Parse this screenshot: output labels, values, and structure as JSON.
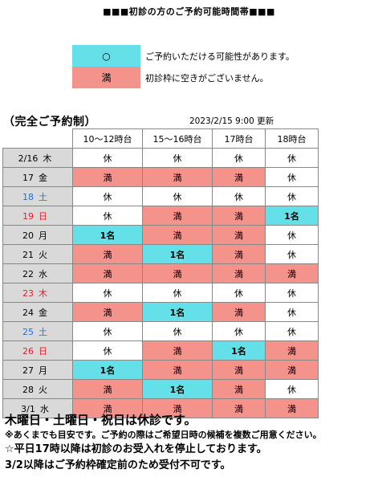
{
  "title": "■■■初診の方のご予約可能時間帯■■■",
  "legend": [
    {
      "symbol": "○",
      "text": "ご予約いただける可能性があります。",
      "color": "#66e0e8"
    },
    {
      "symbol": "満",
      "text": "初診枠に空きがございません。",
      "color": "#f4938c"
    }
  ],
  "system_label": "（完全ご予約制）",
  "updated": "2023/2/15 9:00 更新",
  "columns": [
    "10〜12時台",
    "15〜16時台",
    "17時台",
    "18時台"
  ],
  "status_colors": {
    "avail": "#66e0e8",
    "full": "#f4938c",
    "closed": "#ffffff"
  },
  "weekday_colors": {
    "weekday": "#000000",
    "saturday": "#1f6fd6",
    "holiday": "#e0202a"
  },
  "rows": [
    {
      "date": "2/16",
      "weekday": "木",
      "day_type": "weekday",
      "cells": [
        "休",
        "休",
        "休",
        "休"
      ]
    },
    {
      "date": "17",
      "weekday": "金",
      "day_type": "weekday",
      "cells": [
        "満",
        "満",
        "満",
        "休"
      ]
    },
    {
      "date": "18",
      "weekday": "土",
      "day_type": "saturday",
      "cells": [
        "休",
        "休",
        "休",
        "休"
      ]
    },
    {
      "date": "19",
      "weekday": "日",
      "day_type": "holiday",
      "cells": [
        "休",
        "満",
        "満",
        "1名"
      ]
    },
    {
      "date": "20",
      "weekday": "月",
      "day_type": "weekday",
      "cells": [
        "1名",
        "満",
        "満",
        "休"
      ]
    },
    {
      "date": "21",
      "weekday": "火",
      "day_type": "weekday",
      "cells": [
        "満",
        "1名",
        "満",
        "休"
      ]
    },
    {
      "date": "22",
      "weekday": "水",
      "day_type": "weekday",
      "cells": [
        "満",
        "満",
        "満",
        "満"
      ]
    },
    {
      "date": "23",
      "weekday": "木",
      "day_type": "holiday",
      "cells": [
        "休",
        "休",
        "休",
        "休"
      ]
    },
    {
      "date": "24",
      "weekday": "金",
      "day_type": "weekday",
      "cells": [
        "満",
        "1名",
        "満",
        "休"
      ]
    },
    {
      "date": "25",
      "weekday": "土",
      "day_type": "saturday",
      "cells": [
        "休",
        "休",
        "休",
        "休"
      ]
    },
    {
      "date": "26",
      "weekday": "日",
      "day_type": "holiday",
      "cells": [
        "休",
        "満",
        "1名",
        "満"
      ]
    },
    {
      "date": "27",
      "weekday": "月",
      "day_type": "weekday",
      "cells": [
        "1名",
        "満",
        "満",
        "満"
      ]
    },
    {
      "date": "28",
      "weekday": "火",
      "day_type": "weekday",
      "cells": [
        "満",
        "1名",
        "満",
        "休"
      ]
    },
    {
      "date": "3/1",
      "weekday": "水",
      "day_type": "weekday",
      "cells": [
        "満",
        "満",
        "満",
        "満"
      ]
    }
  ],
  "notes": [
    "木曜日・土曜日・祝日は休診です。",
    "※あくまでも目安です。ご予約の際はご希望日時の候補を複数ご用意ください。",
    "☆平日17時以降は初診のお受入れを停止しております。",
    "3/2以降はご予約枠確定前のため受付不可です。"
  ]
}
